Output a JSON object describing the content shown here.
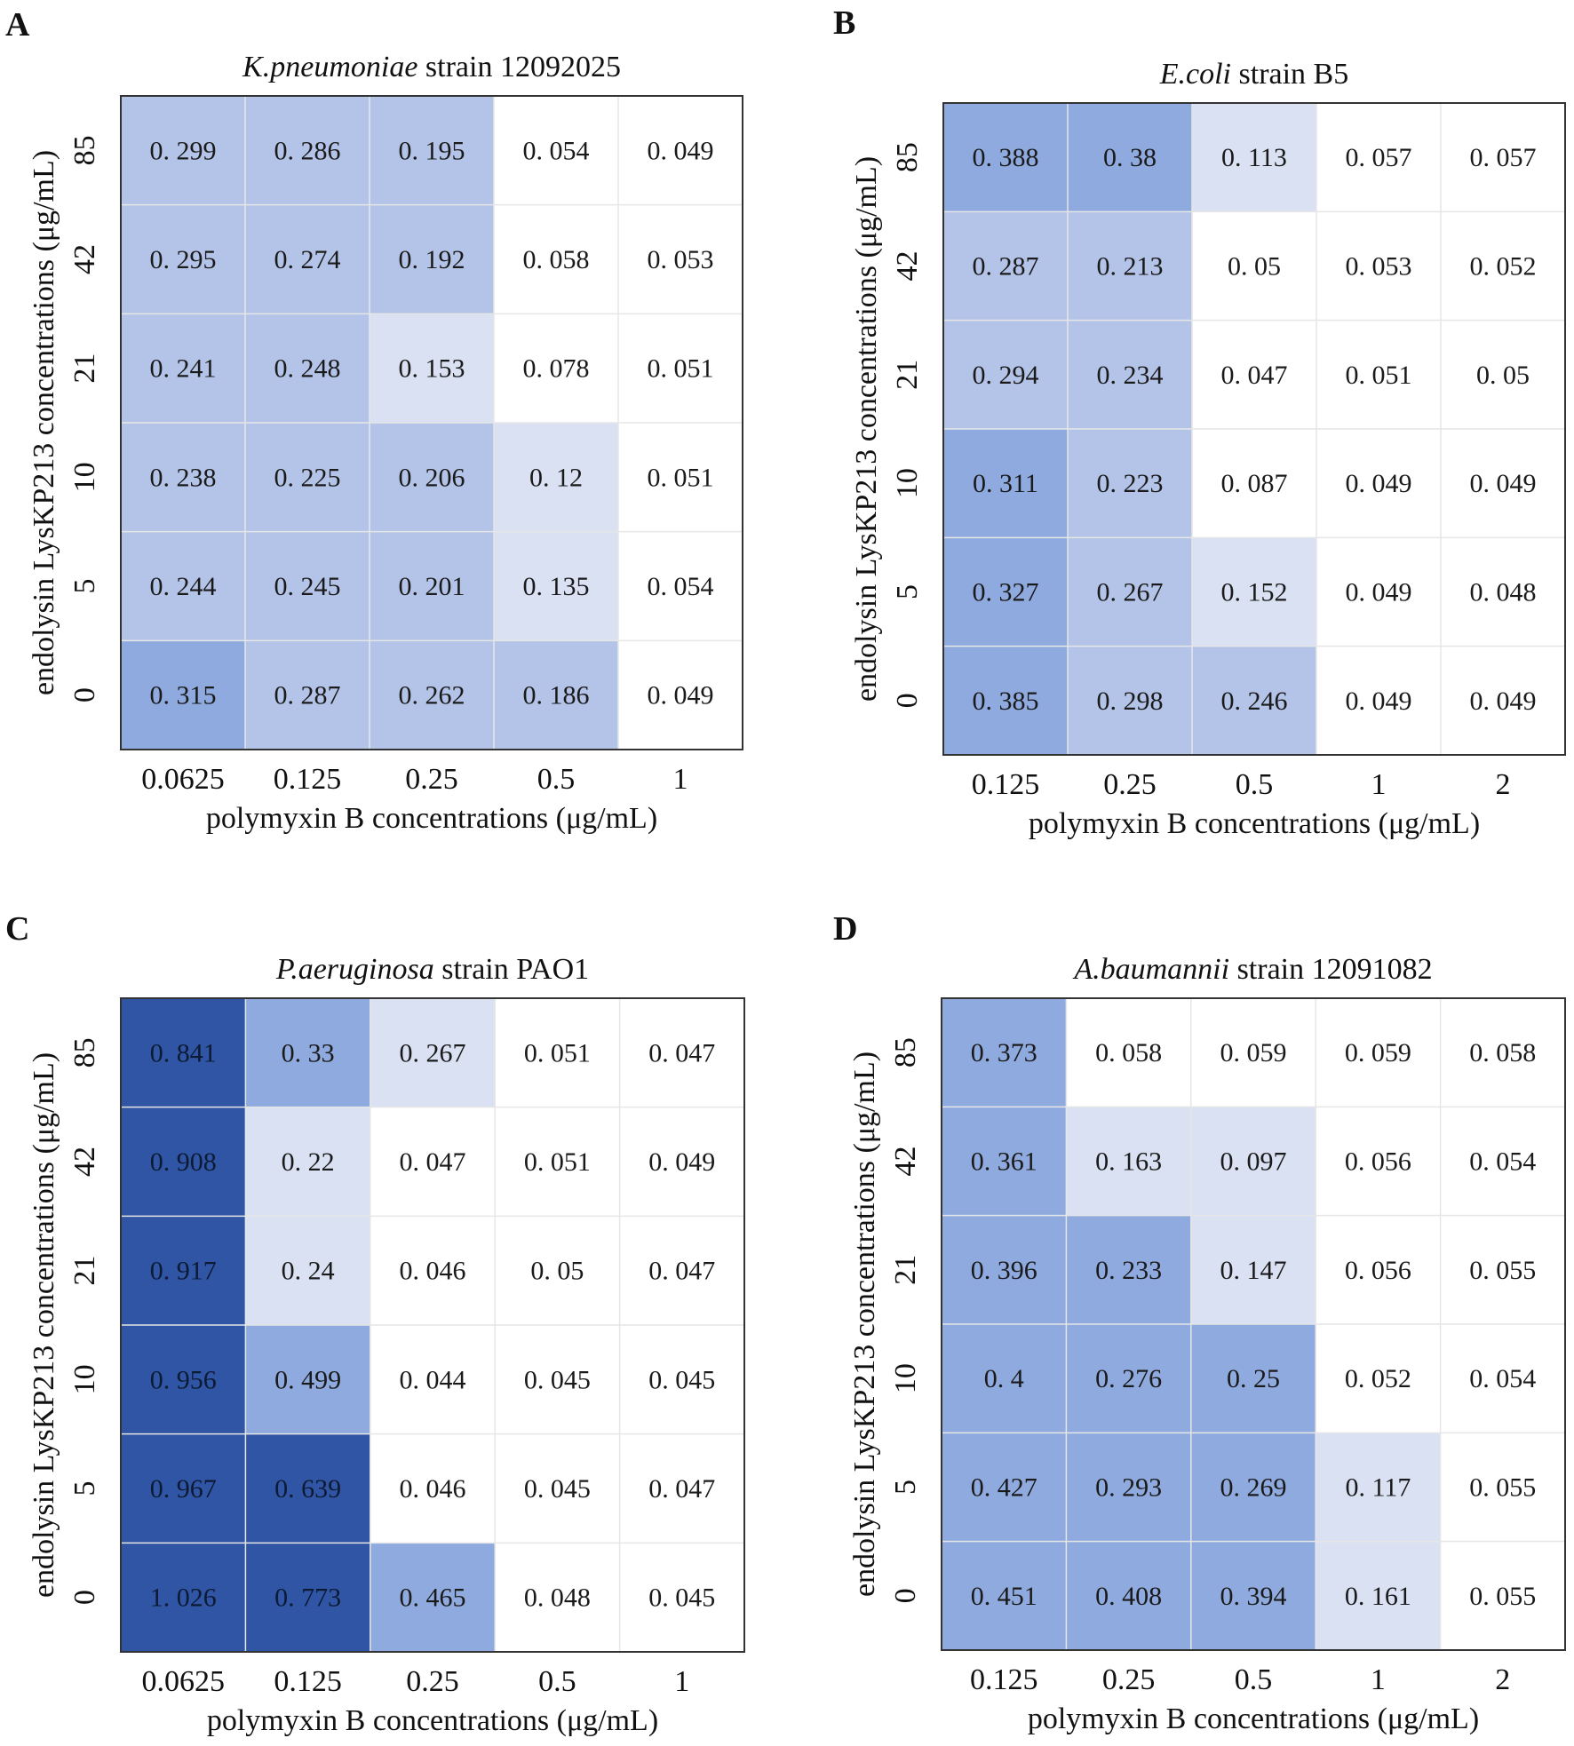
{
  "chart_data": [
    {
      "type": "heatmap",
      "panel": "A",
      "title_italic": "K.pneumoniae",
      "title_rest": " strain 12092025",
      "xlabel": "polymyxin B concentrations (μg/mL)",
      "ylabel": "endolysin LysKP213 concentrations (μg/mL)",
      "x_categories": [
        "0.0625",
        "0.125",
        "0.25",
        "0.5",
        "1"
      ],
      "y_categories": [
        "85",
        "42",
        "21",
        "10",
        "5",
        "0"
      ],
      "values": [
        [
          "0. 299",
          "0. 286",
          "0. 195",
          "0. 054",
          "0. 049"
        ],
        [
          "0. 295",
          "0. 274",
          "0. 192",
          "0. 058",
          "0. 053"
        ],
        [
          "0. 241",
          "0. 248",
          "0. 153",
          "0. 078",
          "0. 051"
        ],
        [
          "0. 238",
          "0. 225",
          "0. 206",
          "0. 12",
          "0. 051"
        ],
        [
          "0. 244",
          "0. 245",
          "0. 201",
          "0. 135",
          "0. 054"
        ],
        [
          "0. 315",
          "0. 287",
          "0. 262",
          "0. 186",
          "0. 049"
        ]
      ],
      "colors": [
        [
          "#b4c4e8",
          "#b4c4e8",
          "#b4c4e8",
          "#ffffff",
          "#ffffff"
        ],
        [
          "#b4c4e8",
          "#b4c4e8",
          "#b4c4e8",
          "#ffffff",
          "#ffffff"
        ],
        [
          "#b4c4e8",
          "#b4c4e8",
          "#d9e1f3",
          "#ffffff",
          "#ffffff"
        ],
        [
          "#b4c4e8",
          "#b4c4e8",
          "#b4c4e8",
          "#d9e1f3",
          "#ffffff"
        ],
        [
          "#b4c4e8",
          "#b4c4e8",
          "#b4c4e8",
          "#d9e1f3",
          "#ffffff"
        ],
        [
          "#8faadf",
          "#b4c4e8",
          "#b4c4e8",
          "#b4c4e8",
          "#ffffff"
        ]
      ]
    },
    {
      "type": "heatmap",
      "panel": "B",
      "title_italic": "E.coli",
      "title_rest": " strain B5",
      "xlabel": "polymyxin B concentrations (μg/mL)",
      "ylabel": "endolysin LysKP213 concentrations (μg/mL)",
      "x_categories": [
        "0.125",
        "0.25",
        "0.5",
        "1",
        "2"
      ],
      "y_categories": [
        "85",
        "42",
        "21",
        "10",
        "5",
        "0"
      ],
      "values": [
        [
          "0. 388",
          "0. 38",
          "0. 113",
          "0. 057",
          "0. 057"
        ],
        [
          "0. 287",
          "0. 213",
          "0. 05",
          "0. 053",
          "0. 052"
        ],
        [
          "0. 294",
          "0. 234",
          "0. 047",
          "0. 051",
          "0. 05"
        ],
        [
          "0. 311",
          "0. 223",
          "0. 087",
          "0. 049",
          "0. 049"
        ],
        [
          "0. 327",
          "0. 267",
          "0. 152",
          "0. 049",
          "0. 048"
        ],
        [
          "0. 385",
          "0. 298",
          "0. 246",
          "0. 049",
          "0. 049"
        ]
      ],
      "colors": [
        [
          "#8faadf",
          "#8faadf",
          "#d9e1f3",
          "#ffffff",
          "#ffffff"
        ],
        [
          "#b4c4e8",
          "#b4c4e8",
          "#ffffff",
          "#ffffff",
          "#ffffff"
        ],
        [
          "#b4c4e8",
          "#b4c4e8",
          "#ffffff",
          "#ffffff",
          "#ffffff"
        ],
        [
          "#8faadf",
          "#b4c4e8",
          "#ffffff",
          "#ffffff",
          "#ffffff"
        ],
        [
          "#8faadf",
          "#b4c4e8",
          "#d9e1f3",
          "#ffffff",
          "#ffffff"
        ],
        [
          "#8faadf",
          "#b4c4e8",
          "#b4c4e8",
          "#ffffff",
          "#ffffff"
        ]
      ]
    },
    {
      "type": "heatmap",
      "panel": "C",
      "title_italic": "P.aeruginosa",
      "title_rest": " strain PAO1",
      "xlabel": "polymyxin B concentrations (μg/mL)",
      "ylabel": "endolysin LysKP213 concentrations (μg/mL)",
      "x_categories": [
        "0.0625",
        "0.125",
        "0.25",
        "0.5",
        "1"
      ],
      "y_categories": [
        "85",
        "42",
        "21",
        "10",
        "5",
        "0"
      ],
      "values": [
        [
          "0. 841",
          "0. 33",
          "0. 267",
          "0. 051",
          "0. 047"
        ],
        [
          "0. 908",
          "0. 22",
          "0. 047",
          "0. 051",
          "0. 049"
        ],
        [
          "0. 917",
          "0. 24",
          "0. 046",
          "0. 05",
          "0. 047"
        ],
        [
          "0. 956",
          "0. 499",
          "0. 044",
          "0. 045",
          "0. 045"
        ],
        [
          "0. 967",
          "0. 639",
          "0. 046",
          "0. 045",
          "0. 047"
        ],
        [
          "1. 026",
          "0. 773",
          "0. 465",
          "0. 048",
          "0. 045"
        ]
      ],
      "colors": [
        [
          "#2f55a4",
          "#8faadf",
          "#d9e1f3",
          "#ffffff",
          "#ffffff"
        ],
        [
          "#2f55a4",
          "#d9e1f3",
          "#ffffff",
          "#ffffff",
          "#ffffff"
        ],
        [
          "#2f55a4",
          "#d9e1f3",
          "#ffffff",
          "#ffffff",
          "#ffffff"
        ],
        [
          "#2f55a4",
          "#8faadf",
          "#ffffff",
          "#ffffff",
          "#ffffff"
        ],
        [
          "#2f55a4",
          "#2f55a4",
          "#ffffff",
          "#ffffff",
          "#ffffff"
        ],
        [
          "#2f55a4",
          "#2f55a4",
          "#8faadf",
          "#ffffff",
          "#ffffff"
        ]
      ]
    },
    {
      "type": "heatmap",
      "panel": "D",
      "title_italic": "A.baumannii",
      "title_rest": " strain 12091082",
      "xlabel": "polymyxin B concentrations (μg/mL)",
      "ylabel": "endolysin LysKP213 concentrations (μg/mL)",
      "x_categories": [
        "0.125",
        "0.25",
        "0.5",
        "1",
        "2"
      ],
      "y_categories": [
        "85",
        "42",
        "21",
        "10",
        "5",
        "0"
      ],
      "values": [
        [
          "0. 373",
          "0. 058",
          "0. 059",
          "0. 059",
          "0. 058"
        ],
        [
          "0. 361",
          "0. 163",
          "0. 097",
          "0. 056",
          "0. 054"
        ],
        [
          "0. 396",
          "0. 233",
          "0. 147",
          "0. 056",
          "0. 055"
        ],
        [
          "0. 4",
          "0. 276",
          "0. 25",
          "0. 052",
          "0. 054"
        ],
        [
          "0. 427",
          "0. 293",
          "0. 269",
          "0. 117",
          "0. 055"
        ],
        [
          "0. 451",
          "0. 408",
          "0. 394",
          "0. 161",
          "0. 055"
        ]
      ],
      "colors": [
        [
          "#8faadf",
          "#ffffff",
          "#ffffff",
          "#ffffff",
          "#ffffff"
        ],
        [
          "#8faadf",
          "#d9e1f3",
          "#d9e1f3",
          "#ffffff",
          "#ffffff"
        ],
        [
          "#8faadf",
          "#8faadf",
          "#d9e1f3",
          "#ffffff",
          "#ffffff"
        ],
        [
          "#8faadf",
          "#8faadf",
          "#8faadf",
          "#ffffff",
          "#ffffff"
        ],
        [
          "#8faadf",
          "#8faadf",
          "#8faadf",
          "#d9e1f3",
          "#ffffff"
        ],
        [
          "#8faadf",
          "#8faadf",
          "#8faadf",
          "#d9e1f3",
          "#ffffff"
        ]
      ]
    }
  ]
}
